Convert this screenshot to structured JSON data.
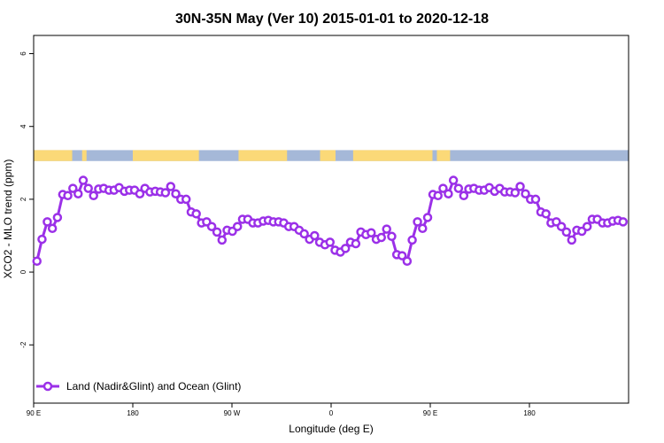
{
  "chart_data": {
    "type": "line",
    "title": "30N-35N May (Ver 10)   2015-01-01 to 2020-12-18",
    "xlabel": "Longitude (deg E)",
    "ylabel": "XCO2 - MLO trend (ppm)",
    "xlim": [
      -90,
      180
    ],
    "ylim": [
      -3.6,
      6.5
    ],
    "x_ticks": [
      {
        "value": -90,
        "label": "90 E"
      },
      {
        "value": -45,
        "label": "180"
      },
      {
        "value": 0,
        "label": "90 W"
      },
      {
        "value": 45,
        "label": "0"
      },
      {
        "value": 90,
        "label": "90 E"
      },
      {
        "value": 135,
        "label": "180"
      }
    ],
    "y_ticks": [
      {
        "value": -2,
        "label": "-2"
      },
      {
        "value": 0,
        "label": "0"
      },
      {
        "value": 2,
        "label": "2"
      },
      {
        "value": 4,
        "label": "4"
      },
      {
        "value": 6,
        "label": "6"
      }
    ],
    "grid": false,
    "legend_position": "bottom-left",
    "series": [
      {
        "name": "Land (Nadir&Glint) and Ocean (Glint)",
        "color": "#9b30e8",
        "x": [
          -88.5,
          -86.2,
          -83.8,
          -81.5,
          -79.2,
          -76.8,
          -74.5,
          -72.2,
          -69.8,
          -67.5,
          -65.2,
          -62.8,
          -60.5,
          -58.2,
          -55.8,
          -53.5,
          -51.2,
          -48.8,
          -46.5,
          -44.2,
          -41.8,
          -39.5,
          -37.2,
          -34.8,
          -32.5,
          -30.2,
          -27.8,
          -25.5,
          -23.2,
          -20.8,
          -18.5,
          -16.2,
          -13.8,
          -11.5,
          -9.2,
          -6.8,
          -4.5,
          -2.2,
          0.2,
          2.5,
          4.8,
          7.2,
          9.5,
          11.8,
          14.2,
          16.5,
          18.8,
          21.2,
          23.5,
          25.8,
          28.2,
          30.5,
          32.8,
          35.2,
          37.5,
          39.8,
          42.2,
          44.5,
          46.8,
          49.2,
          51.5,
          53.8,
          56.2,
          58.5,
          60.8,
          63.2,
          65.5,
          67.8,
          70.2,
          72.5,
          74.8,
          77.2,
          79.5,
          81.8,
          84.2,
          86.5,
          88.8,
          91.2,
          93.5,
          95.8,
          98.2,
          100.5,
          102.8,
          105.2,
          107.5,
          109.8,
          112.2,
          114.5,
          116.8,
          119.2,
          121.5,
          123.8,
          126.2,
          128.5,
          130.8,
          133.2,
          135.5,
          137.8,
          140.2,
          142.5,
          144.8,
          147.2,
          149.5,
          151.8,
          154.2,
          156.5,
          158.8,
          161.2,
          163.5,
          165.8,
          168.2,
          170.5,
          172.8,
          175.2,
          177.5
        ],
        "y": [
          0.3,
          0.9,
          1.38,
          1.2,
          1.5,
          2.13,
          2.1,
          2.3,
          2.15,
          2.52,
          2.3,
          2.1,
          2.28,
          2.3,
          2.25,
          2.25,
          2.32,
          2.22,
          2.25,
          2.25,
          2.15,
          2.3,
          2.2,
          2.22,
          2.2,
          2.18,
          2.35,
          2.15,
          2.0,
          2.0,
          1.65,
          1.6,
          1.35,
          1.38,
          1.25,
          1.1,
          0.88,
          1.15,
          1.12,
          1.25,
          1.45,
          1.45,
          1.35,
          1.35,
          1.4,
          1.42,
          1.38,
          1.38,
          1.35,
          1.25,
          1.25,
          1.15,
          1.05,
          0.9,
          1.0,
          0.82,
          0.75,
          0.82,
          0.6,
          0.55,
          0.65,
          0.82,
          0.78,
          1.1,
          1.03,
          1.08,
          0.9,
          0.95,
          1.18,
          0.98,
          0.48,
          0.45,
          0.3,
          0.88,
          1.38,
          1.2,
          1.5,
          2.13,
          2.1,
          2.3,
          2.15,
          2.52,
          2.3,
          2.1,
          2.28,
          2.3,
          2.25,
          2.25,
          2.32,
          2.22,
          2.3,
          2.2,
          2.2,
          2.18,
          2.35,
          2.15,
          2.0,
          2.0,
          1.65,
          1.6,
          1.35,
          1.38,
          1.25,
          1.1,
          0.88,
          1.15,
          1.12,
          1.25,
          1.45,
          1.45,
          1.35,
          1.35,
          1.4,
          1.42,
          1.38
        ]
      }
    ],
    "surface_strip": {
      "y_range": [
        3.05,
        3.35
      ],
      "ocean_color": "#a5b8d8",
      "land_color": "#fbd978",
      "land_segments": [
        [
          -90,
          -72.5
        ],
        [
          -68,
          -66
        ],
        [
          -45,
          -15
        ],
        [
          3,
          25
        ],
        [
          40,
          47
        ],
        [
          55,
          91
        ],
        [
          93,
          99
        ]
      ]
    }
  }
}
